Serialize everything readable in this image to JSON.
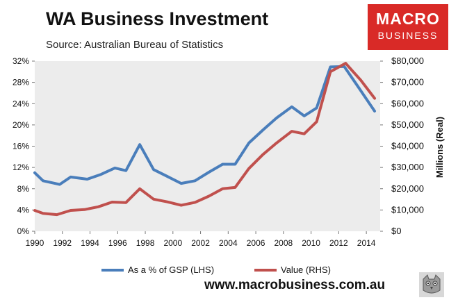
{
  "header": {
    "title": "WA Business Investment",
    "subtitle": "Source: Australian Bureau of Statistics"
  },
  "logo": {
    "line1": "MACRO",
    "line2": "BUSINESS",
    "color": "#d92a27"
  },
  "footer": {
    "url": "www.macrobusiness.com.au"
  },
  "chart_data": {
    "type": "line",
    "xlim": [
      1990,
      2015
    ],
    "x_ticks": [
      "1990",
      "1992",
      "1994",
      "1996",
      "1998",
      "2000",
      "2002",
      "2004",
      "2006",
      "2008",
      "2010",
      "2012",
      "2014"
    ],
    "left_axis": {
      "ylim": [
        0,
        32
      ],
      "ticks": [
        "0%",
        "4%",
        "8%",
        "12%",
        "16%",
        "20%",
        "24%",
        "28%",
        "32%"
      ]
    },
    "right_axis": {
      "ylabel": "Millions (Real)",
      "ylim": [
        0,
        80000
      ],
      "ticks": [
        "$0",
        "$10,000",
        "$20,000",
        "$30,000",
        "$40,000",
        "$50,000",
        "$60,000",
        "$70,000",
        "$80,000"
      ]
    },
    "grid": false,
    "plot_background": "#ececec",
    "legend_position": "bottom",
    "series": [
      {
        "name": "As a % of GSP (LHS)",
        "axis": "left",
        "color": "#4a7ebb",
        "x": [
          1990,
          1990.6,
          1991.8,
          1992.6,
          1993.8,
          1994.8,
          1995.8,
          1996.6,
          1997.6,
          1998.6,
          1999.6,
          2000.6,
          2001.6,
          2002.6,
          2003.6,
          2004.5,
          2005.5,
          2006.5,
          2007.5,
          2008.6,
          2009.5,
          2010.4,
          2011.4,
          2012.4,
          2013.5,
          2014.6
        ],
        "y": [
          11.0,
          9.5,
          8.8,
          10.2,
          9.8,
          10.7,
          11.9,
          11.4,
          16.3,
          11.6,
          10.3,
          9.0,
          9.5,
          11.1,
          12.6,
          12.6,
          16.6,
          19.0,
          21.3,
          23.4,
          21.7,
          23.2,
          30.9,
          31.0,
          26.8,
          22.6
        ]
      },
      {
        "name": "Value (RHS)",
        "axis": "right",
        "color": "#c0504d",
        "x": [
          1990,
          1990.6,
          1991.6,
          1992.6,
          1993.6,
          1994.6,
          1995.6,
          1996.6,
          1997.6,
          1998.6,
          1999.6,
          2000.6,
          2001.6,
          2002.6,
          2003.6,
          2004.5,
          2005.5,
          2006.5,
          2007.5,
          2008.6,
          2009.5,
          2010.4,
          2011.4,
          2012.5,
          2013.6,
          2014.6
        ],
        "y": [
          9800,
          8400,
          7800,
          9800,
          10200,
          11500,
          13700,
          13500,
          20000,
          15100,
          13800,
          12200,
          13600,
          16500,
          20000,
          20600,
          29500,
          36000,
          41500,
          47000,
          45800,
          51500,
          75000,
          79000,
          71000,
          62500
        ]
      }
    ]
  }
}
